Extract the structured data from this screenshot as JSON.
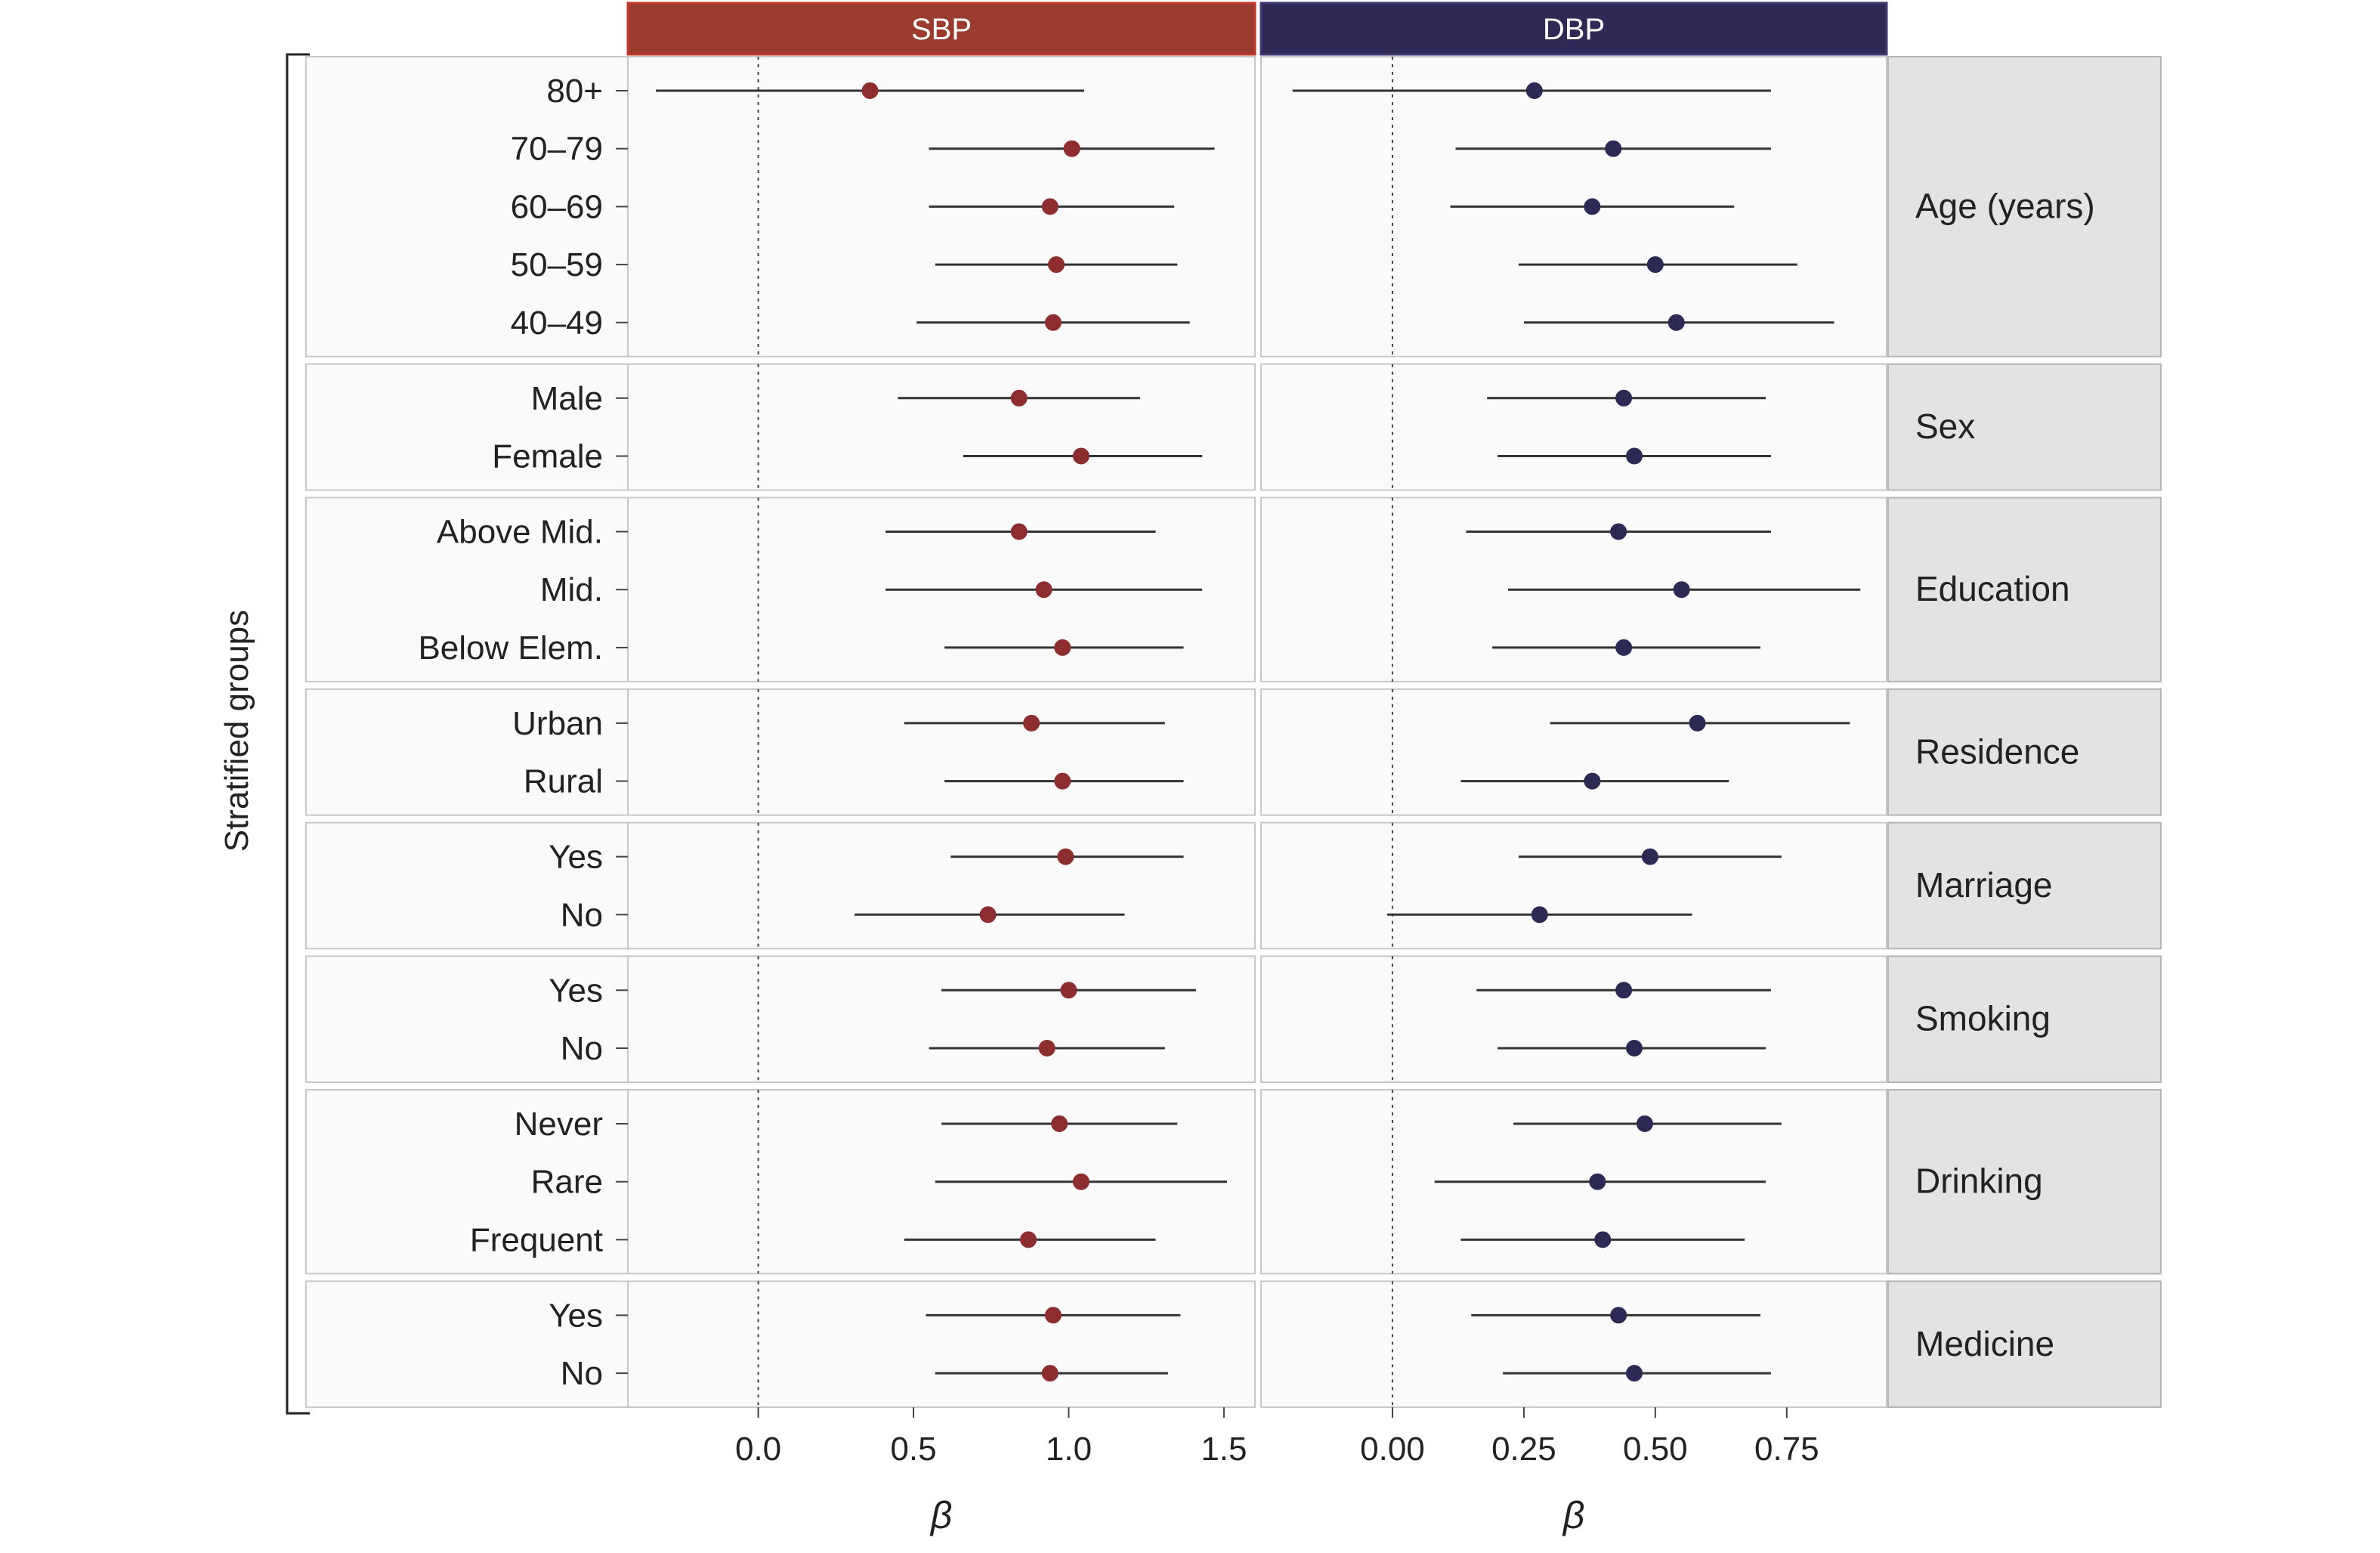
{
  "chart_data": {
    "type": "forest",
    "y_axis_title": "Stratified groups",
    "colors": {
      "sbp": "#8e2d2f",
      "sbp_header": "#9b3b2f",
      "dbp": "#2c2a54",
      "dbp_header": "#2e2a55",
      "strip": "#e3e3e3",
      "panel": "#fafafa",
      "border": "#c8c8c8"
    },
    "panels": [
      {
        "key": "sbp",
        "label": "SBP",
        "x_label": "β",
        "xlim": [
          -0.42,
          1.6
        ],
        "ticks": [
          0.0,
          0.5,
          1.0,
          1.5
        ],
        "tick_labels": [
          "0.0",
          "0.5",
          "1.0",
          "1.5"
        ],
        "ref_line": 0
      },
      {
        "key": "dbp",
        "label": "DBP",
        "x_label": "β",
        "xlim": [
          -0.25,
          0.94
        ],
        "ticks": [
          0.0,
          0.25,
          0.5,
          0.75
        ],
        "tick_labels": [
          "0.00",
          "0.25",
          "0.50",
          "0.75"
        ],
        "ref_line": 0
      }
    ],
    "groups": [
      {
        "name": "Age (years)",
        "rows": [
          {
            "label": "80+",
            "sbp": {
              "est": 0.36,
              "lo": -0.33,
              "hi": 1.05
            },
            "dbp": {
              "est": 0.27,
              "lo": -0.19,
              "hi": 0.72
            }
          },
          {
            "label": "70–79",
            "sbp": {
              "est": 1.01,
              "lo": 0.55,
              "hi": 1.47
            },
            "dbp": {
              "est": 0.42,
              "lo": 0.12,
              "hi": 0.72
            }
          },
          {
            "label": "60–69",
            "sbp": {
              "est": 0.94,
              "lo": 0.55,
              "hi": 1.34
            },
            "dbp": {
              "est": 0.38,
              "lo": 0.11,
              "hi": 0.65
            }
          },
          {
            "label": "50–59",
            "sbp": {
              "est": 0.96,
              "lo": 0.57,
              "hi": 1.35
            },
            "dbp": {
              "est": 0.5,
              "lo": 0.24,
              "hi": 0.77
            }
          },
          {
            "label": "40–49",
            "sbp": {
              "est": 0.95,
              "lo": 0.51,
              "hi": 1.39
            },
            "dbp": {
              "est": 0.54,
              "lo": 0.25,
              "hi": 0.84
            }
          }
        ]
      },
      {
        "name": "Sex",
        "rows": [
          {
            "label": "Male",
            "sbp": {
              "est": 0.84,
              "lo": 0.45,
              "hi": 1.23
            },
            "dbp": {
              "est": 0.44,
              "lo": 0.18,
              "hi": 0.71
            }
          },
          {
            "label": "Female",
            "sbp": {
              "est": 1.04,
              "lo": 0.66,
              "hi": 1.43
            },
            "dbp": {
              "est": 0.46,
              "lo": 0.2,
              "hi": 0.72
            }
          }
        ]
      },
      {
        "name": "Education",
        "rows": [
          {
            "label": "Above Mid.",
            "sbp": {
              "est": 0.84,
              "lo": 0.41,
              "hi": 1.28
            },
            "dbp": {
              "est": 0.43,
              "lo": 0.14,
              "hi": 0.72
            }
          },
          {
            "label": "Mid.",
            "sbp": {
              "est": 0.92,
              "lo": 0.41,
              "hi": 1.43
            },
            "dbp": {
              "est": 0.55,
              "lo": 0.22,
              "hi": 0.89
            }
          },
          {
            "label": "Below Elem.",
            "sbp": {
              "est": 0.98,
              "lo": 0.6,
              "hi": 1.37
            },
            "dbp": {
              "est": 0.44,
              "lo": 0.19,
              "hi": 0.7
            }
          }
        ]
      },
      {
        "name": "Residence",
        "rows": [
          {
            "label": "Urban",
            "sbp": {
              "est": 0.88,
              "lo": 0.47,
              "hi": 1.31
            },
            "dbp": {
              "est": 0.58,
              "lo": 0.3,
              "hi": 0.87
            }
          },
          {
            "label": "Rural",
            "sbp": {
              "est": 0.98,
              "lo": 0.6,
              "hi": 1.37
            },
            "dbp": {
              "est": 0.38,
              "lo": 0.13,
              "hi": 0.64
            }
          }
        ]
      },
      {
        "name": "Marriage",
        "rows": [
          {
            "label": "Yes",
            "sbp": {
              "est": 0.99,
              "lo": 0.62,
              "hi": 1.37
            },
            "dbp": {
              "est": 0.49,
              "lo": 0.24,
              "hi": 0.74
            }
          },
          {
            "label": "No",
            "sbp": {
              "est": 0.74,
              "lo": 0.31,
              "hi": 1.18
            },
            "dbp": {
              "est": 0.28,
              "lo": -0.01,
              "hi": 0.57
            }
          }
        ]
      },
      {
        "name": "Smoking",
        "rows": [
          {
            "label": "Yes",
            "sbp": {
              "est": 1.0,
              "lo": 0.59,
              "hi": 1.41
            },
            "dbp": {
              "est": 0.44,
              "lo": 0.16,
              "hi": 0.72
            }
          },
          {
            "label": "No",
            "sbp": {
              "est": 0.93,
              "lo": 0.55,
              "hi": 1.31
            },
            "dbp": {
              "est": 0.46,
              "lo": 0.2,
              "hi": 0.71
            }
          }
        ]
      },
      {
        "name": "Drinking",
        "rows": [
          {
            "label": "Never",
            "sbp": {
              "est": 0.97,
              "lo": 0.59,
              "hi": 1.35
            },
            "dbp": {
              "est": 0.48,
              "lo": 0.23,
              "hi": 0.74
            }
          },
          {
            "label": "Rare",
            "sbp": {
              "est": 1.04,
              "lo": 0.57,
              "hi": 1.51
            },
            "dbp": {
              "est": 0.39,
              "lo": 0.08,
              "hi": 0.71
            }
          },
          {
            "label": "Frequent",
            "sbp": {
              "est": 0.87,
              "lo": 0.47,
              "hi": 1.28
            },
            "dbp": {
              "est": 0.4,
              "lo": 0.13,
              "hi": 0.67
            }
          }
        ]
      },
      {
        "name": "Medicine",
        "rows": [
          {
            "label": "Yes",
            "sbp": {
              "est": 0.95,
              "lo": 0.54,
              "hi": 1.36
            },
            "dbp": {
              "est": 0.43,
              "lo": 0.15,
              "hi": 0.7
            }
          },
          {
            "label": "No",
            "sbp": {
              "est": 0.94,
              "lo": 0.57,
              "hi": 1.32
            },
            "dbp": {
              "est": 0.46,
              "lo": 0.21,
              "hi": 0.72
            }
          }
        ]
      }
    ]
  }
}
